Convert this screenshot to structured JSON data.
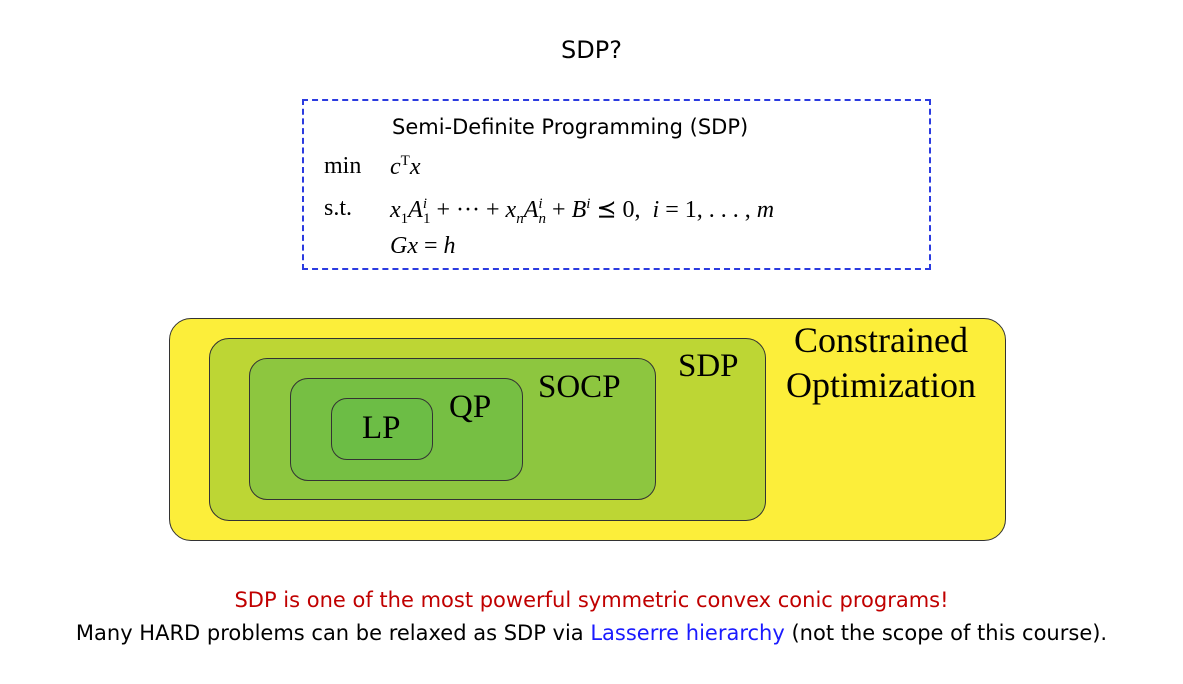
{
  "slide": {
    "title": "SDP?"
  },
  "formulation": {
    "heading": "Semi-Definite Programming (SDP)",
    "objective_keyword": "min",
    "constraint_keyword": "s.t."
  },
  "diagram": {
    "sets": [
      {
        "label": "Constrained",
        "label2": "Optimization",
        "color": "#fcee3a"
      },
      {
        "label": "SDP",
        "color": "#bdd634"
      },
      {
        "label": "SOCP",
        "color": "#8dc63f"
      },
      {
        "label": "QP",
        "color": "#76bf43"
      },
      {
        "label": "LP",
        "color": "#6cbd45"
      }
    ]
  },
  "footer": {
    "highlight": "SDP is one of the most powerful symmetric convex conic programs!",
    "text_before": "Many HARD problems can be relaxed as SDP via ",
    "link": "Lasserre hierarchy",
    "text_after": " (not the scope of this course).",
    "highlight_color": "#c00000",
    "link_color": "#1a1aff"
  }
}
